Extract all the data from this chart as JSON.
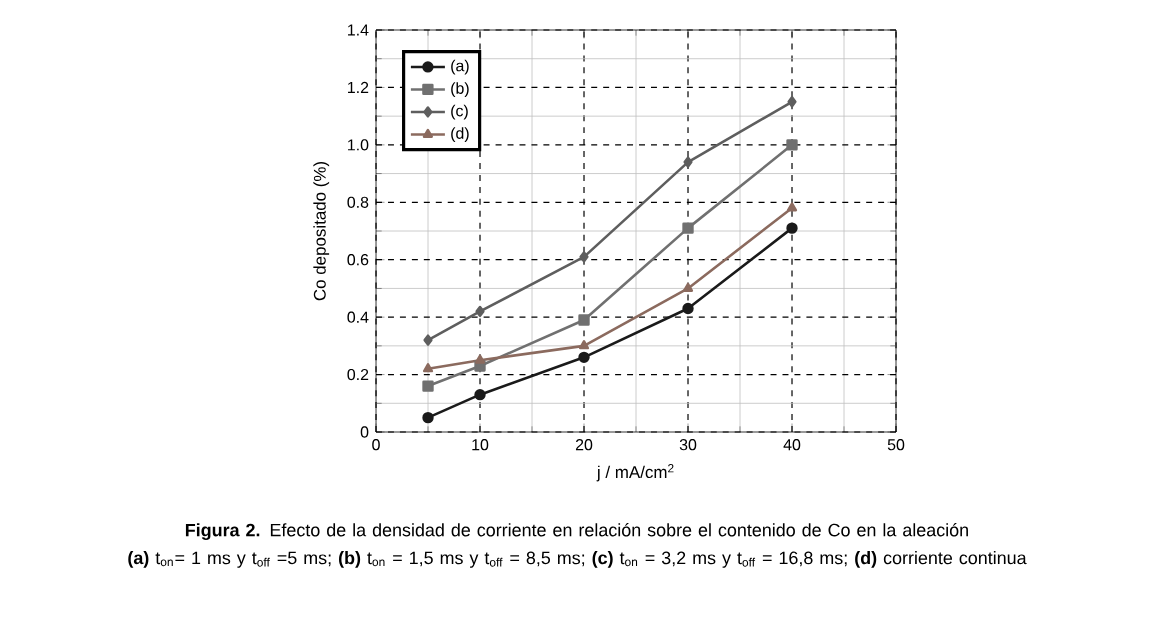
{
  "chart_data": {
    "type": "line",
    "xlabel": "j / mA/cm$^{2}$",
    "ylabel": "Co depositado  (%)",
    "annotations": [
      "**Figura 2.** Efecto de la densidad de corriente en relación sobre el contenido de Co en la aleación",
      "**(a)** t$_{on}$= 1 ms y t$_{off}$ =5 ms; **(b)** t$_{on}$ = 1,5 ms y t$_{off}$ = 8,5 ms; **(c)** t$_{on}$ = 3,2 ms y t$_{off}$ = 16,8 ms; **(d)** corriente continua"
    ],
    "x": [
      5,
      10,
      20,
      30,
      40
    ],
    "series": [
      {
        "name": "(a)",
        "color": "#1a1a1a",
        "marker": "circle",
        "values": [
          0.05,
          0.13,
          0.26,
          0.43,
          0.71
        ]
      },
      {
        "name": "(b)",
        "color": "#707070",
        "marker": "square",
        "values": [
          0.16,
          0.23,
          0.39,
          0.71,
          1.0
        ]
      },
      {
        "name": "(c)",
        "color": "#5e5e5e",
        "marker": "diamond",
        "values": [
          0.32,
          0.42,
          0.61,
          0.94,
          1.15
        ]
      },
      {
        "name": "(d)",
        "color": "#8b6a5e",
        "marker": "triangle",
        "values": [
          0.22,
          0.25,
          0.3,
          0.5,
          0.78
        ]
      }
    ],
    "xlim": [
      0,
      50
    ],
    "xticks": [
      0,
      10,
      20,
      30,
      40,
      50
    ],
    "ylim": [
      0,
      1.4
    ],
    "yticks": [
      0,
      {
        "value": 0.2,
        "label": "0.2"
      },
      {
        "value": 0.4,
        "label": "0.4"
      },
      {
        "value": 0.6,
        "label": "0.6"
      },
      {
        "value": 0.8,
        "label": "0.8"
      },
      {
        "value": 1.0,
        "label": "1.0"
      },
      {
        "value": 1.2,
        "label": "1.2"
      },
      {
        "value": 1.4,
        "label": "1.4"
      }
    ],
    "grid": true,
    "legend": "top left"
  }
}
